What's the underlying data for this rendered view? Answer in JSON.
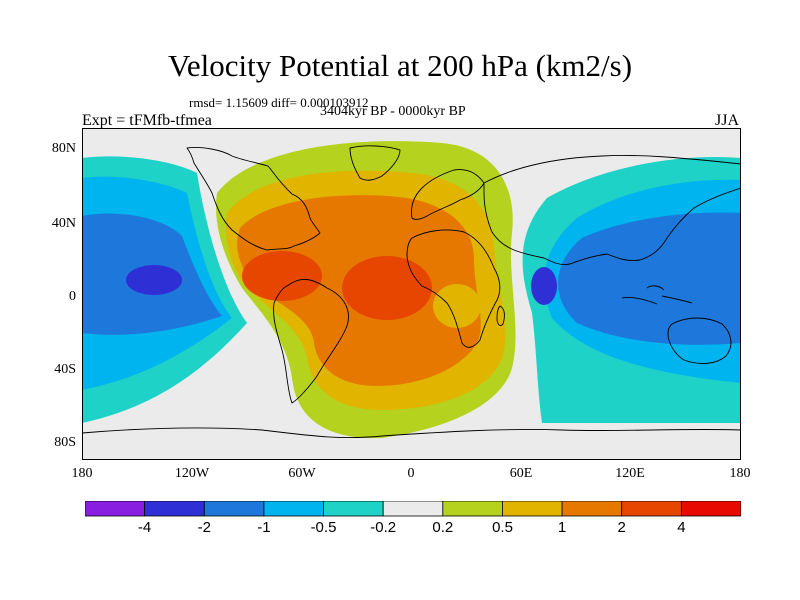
{
  "title": "Velocity Potential at 200 hPa (km2/s)",
  "stats": "rmsd= 1.15609  diff= 0.000103912",
  "subtitle": "3404kyr BP - 0000kyr BP",
  "experiment": "Expt = tFMfb-tfmea",
  "season": "JJA",
  "lat_labels": [
    "80N",
    "40N",
    "0",
    "40S",
    "80S"
  ],
  "lon_labels": [
    "180",
    "120W",
    "60W",
    "0",
    "60E",
    "120E",
    "180"
  ],
  "colorbar": {
    "colors": [
      "#8a1ee0",
      "#2f2fd6",
      "#1e78dc",
      "#00b4f0",
      "#1ed2c8",
      "#ebebeb",
      "#b4d21e",
      "#e1b400",
      "#e67800",
      "#e64600",
      "#e60a00"
    ],
    "labels": [
      "-4",
      "-2",
      "-1",
      "-0.5",
      "-0.2",
      "0.2",
      "0.5",
      "1",
      "2",
      "4"
    ]
  }
}
